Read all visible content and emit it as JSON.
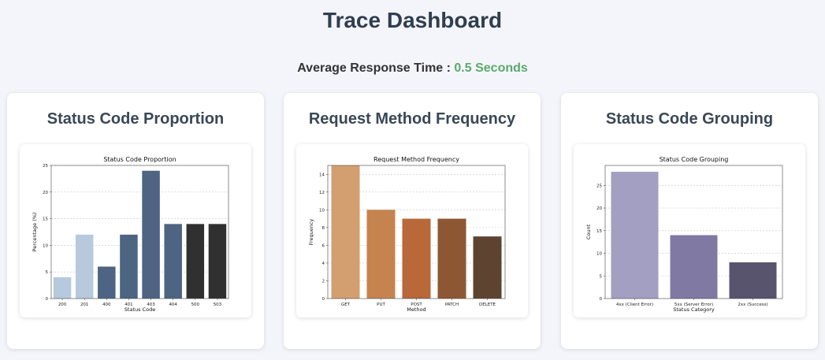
{
  "header": {
    "title": "Trace Dashboard",
    "avg_label": "Average Response Time : ",
    "avg_value": "0.5 Seconds"
  },
  "cards": [
    {
      "heading": "Status Code Proportion"
    },
    {
      "heading": "Request Method Frequency"
    },
    {
      "heading": "Status Code Grouping"
    }
  ],
  "chart_data": [
    {
      "type": "bar",
      "title": "Status Code Proportion",
      "xlabel": "Status Code",
      "ylabel": "Percentage (%)",
      "categories": [
        "200",
        "201",
        "400",
        "401",
        "403",
        "404",
        "500",
        "503"
      ],
      "values": [
        4,
        12,
        6,
        12,
        24,
        14,
        14,
        14
      ],
      "colors": [
        "#b7c9dc",
        "#b7c9dc",
        "#4d6482",
        "#4d6482",
        "#4d6482",
        "#4d6482",
        "#303030",
        "#303030"
      ],
      "ylim": [
        0,
        25
      ],
      "yticks": [
        0,
        5,
        10,
        15,
        20,
        25
      ],
      "grid": true
    },
    {
      "type": "bar",
      "title": "Request Method Frequency",
      "xlabel": "Method",
      "ylabel": "Frequency",
      "categories": [
        "GET",
        "PUT",
        "POST",
        "PATCH",
        "DELETE"
      ],
      "values": [
        15,
        10,
        9,
        9,
        7
      ],
      "colors": [
        "#d39f70",
        "#c6834e",
        "#b9683a",
        "#8e5734",
        "#5e4331"
      ],
      "ylim": [
        0,
        15
      ],
      "yticks": [
        0,
        2,
        4,
        6,
        8,
        10,
        12,
        14
      ],
      "grid": true
    },
    {
      "type": "bar",
      "title": "Status Code Grouping",
      "xlabel": "Status Category",
      "ylabel": "Count",
      "categories": [
        "4xx (Client Error)",
        "5xx (Server Error)",
        "2xx (Success)"
      ],
      "values": [
        28,
        14,
        8
      ],
      "colors": [
        "#a39fc2",
        "#7f79a4",
        "#59546e"
      ],
      "ylim": [
        0,
        29.4
      ],
      "yticks": [
        0,
        5,
        10,
        15,
        20,
        25
      ],
      "grid": true
    }
  ]
}
